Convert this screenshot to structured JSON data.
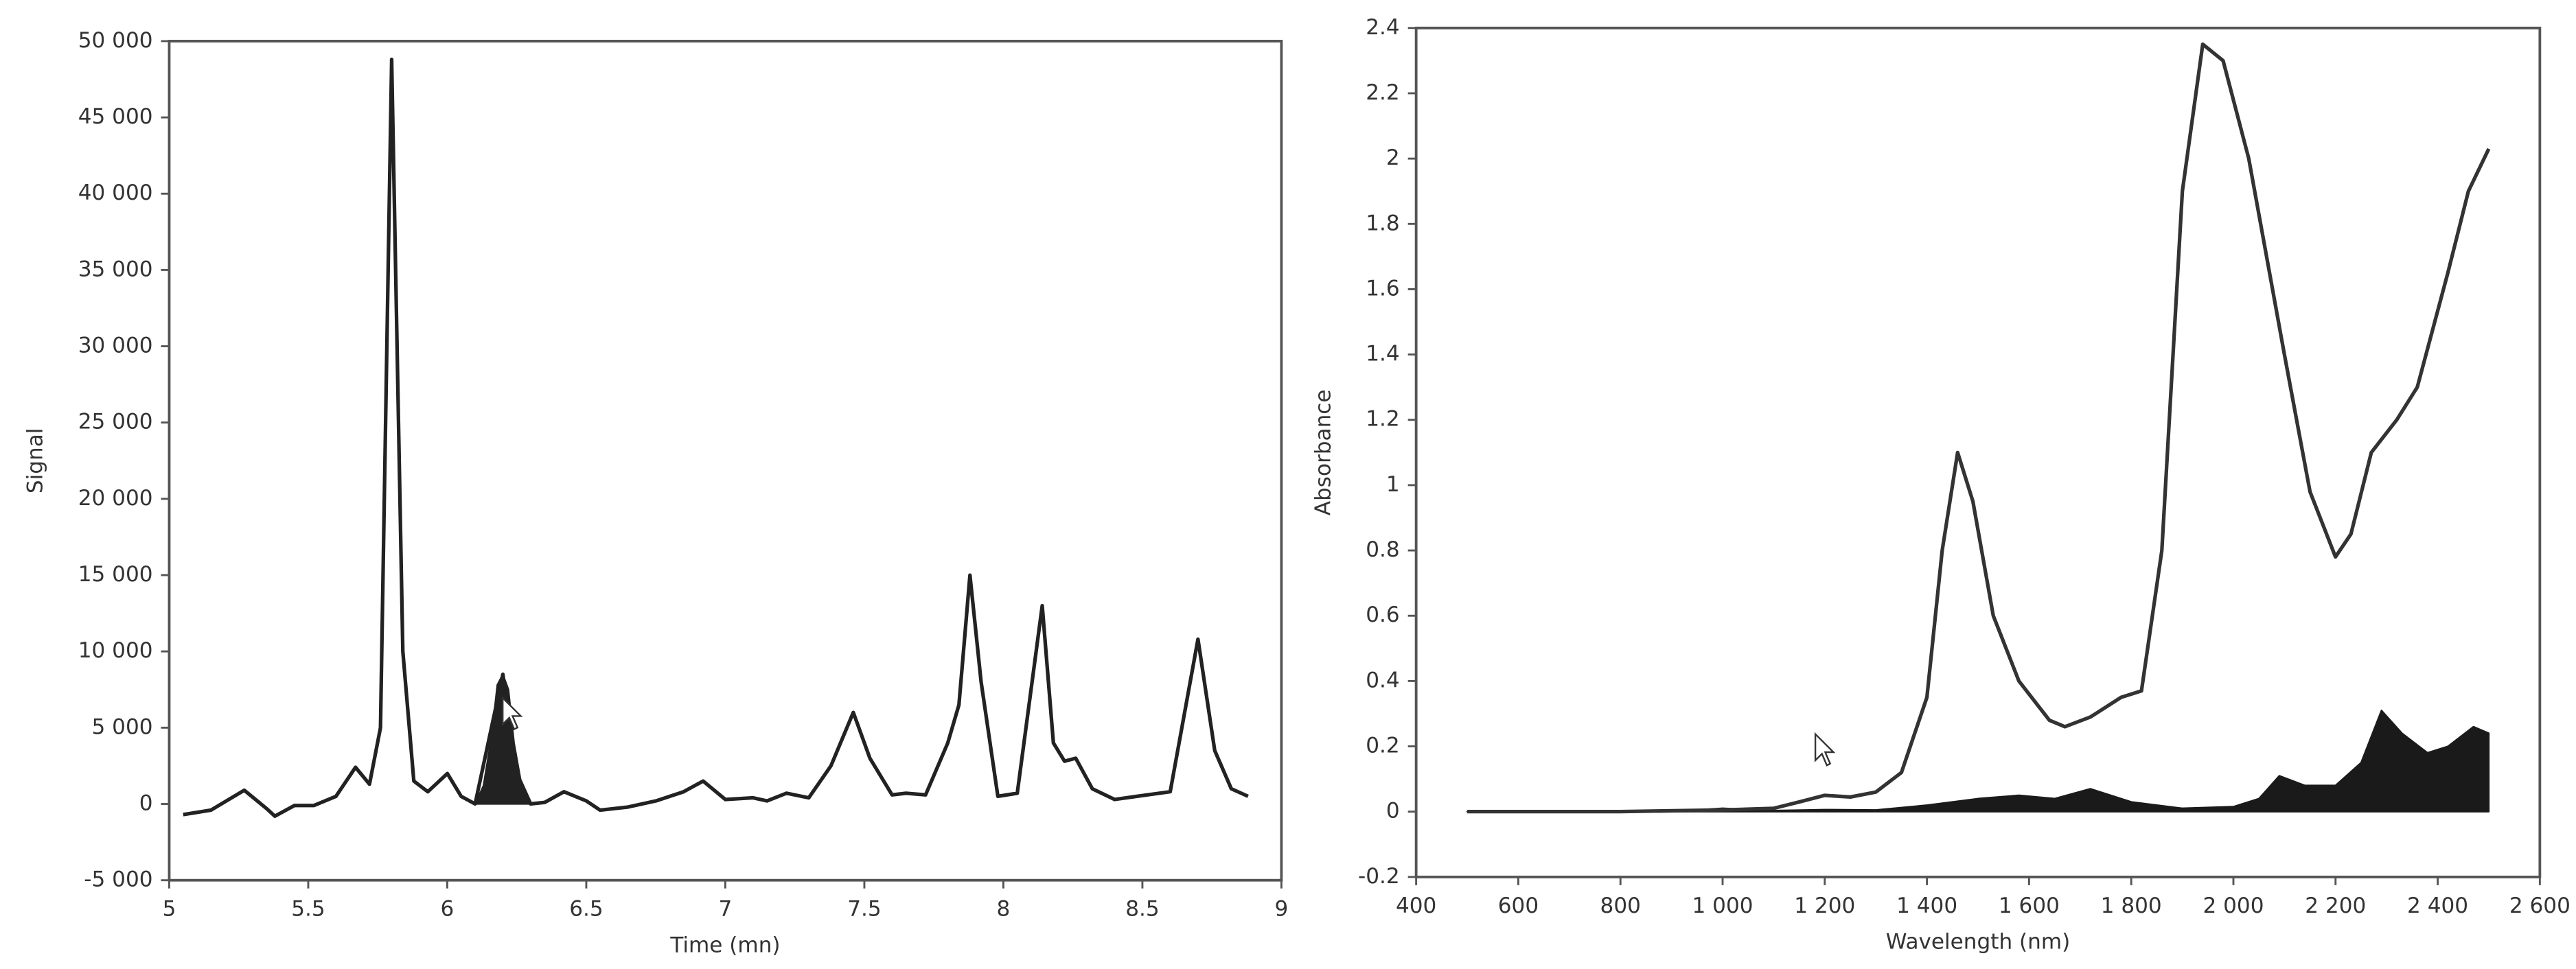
{
  "chart_data": [
    {
      "type": "line",
      "xlabel": "Time (mn)",
      "ylabel": "Signal",
      "xlim": [
        5,
        9
      ],
      "ylim": [
        -5000,
        50000
      ],
      "xticks": [
        5,
        5.5,
        6,
        6.5,
        7,
        7.5,
        8,
        8.5,
        9
      ],
      "yticks": [
        {
          "value": -5000,
          "label": "-5 000"
        },
        0,
        {
          "value": 5000,
          "label": "5 000"
        },
        {
          "value": 10000,
          "label": "10 000"
        },
        {
          "value": 15000,
          "label": "15 000"
        },
        {
          "value": 20000,
          "label": "20 000"
        },
        {
          "value": 25000,
          "label": "25 000"
        },
        {
          "value": 30000,
          "label": "30 000"
        },
        {
          "value": 35000,
          "label": "35 000"
        },
        {
          "value": 40000,
          "label": "40 000"
        },
        {
          "value": 45000,
          "label": "45 000"
        },
        {
          "value": 50000,
          "label": "50 000"
        }
      ],
      "series": [
        {
          "color": "#222222",
          "fill": true,
          "x": [
            6.1,
            6.13,
            6.16,
            6.18,
            6.2,
            6.22,
            6.24,
            6.27,
            6.3
          ],
          "values": [
            0,
            1200,
            4500,
            7800,
            8500,
            7500,
            4000,
            1000,
            0
          ]
        },
        {
          "color": "#222222",
          "fill": false,
          "x": [
            5.05,
            5.15,
            5.27,
            5.35,
            5.38,
            5.45,
            5.52,
            5.6,
            5.67,
            5.72,
            5.76,
            5.8,
            5.84,
            5.88,
            5.93,
            6.0,
            6.05,
            6.1,
            6.2,
            6.25,
            6.3,
            6.35,
            6.42,
            6.5,
            6.55,
            6.65,
            6.75,
            6.85,
            6.92,
            7.0,
            7.1,
            7.15,
            7.22,
            7.3,
            7.38,
            7.46,
            7.52,
            7.6,
            7.65,
            7.72,
            7.8,
            7.84,
            7.88,
            7.92,
            7.98,
            8.05,
            8.14,
            8.18,
            8.22,
            8.26,
            8.32,
            8.4,
            8.48,
            8.6,
            8.7,
            8.76,
            8.82,
            8.88
          ],
          "values": [
            -700,
            -400,
            900,
            -300,
            -800,
            -100,
            -100,
            500,
            2400,
            1300,
            5000,
            48800,
            10000,
            1500,
            800,
            2000,
            500,
            0,
            8500,
            2000,
            0,
            100,
            800,
            200,
            -400,
            -200,
            200,
            800,
            1500,
            300,
            400,
            200,
            700,
            400,
            2500,
            6000,
            3000,
            600,
            700,
            600,
            4000,
            6500,
            15000,
            8000,
            500,
            700,
            13000,
            4000,
            2800,
            3000,
            1000,
            300,
            500,
            800,
            10800,
            3500,
            1000,
            500
          ]
        }
      ]
    },
    {
      "type": "line",
      "xlabel": "Wavelength (nm)",
      "ylabel": "Absorbance",
      "xlim": [
        400,
        2600
      ],
      "ylim": [
        -0.2,
        2.4
      ],
      "xticks": [
        400,
        600,
        800,
        {
          "value": 1000,
          "label": "1 000"
        },
        {
          "value": 1200,
          "label": "1 200"
        },
        {
          "value": 1400,
          "label": "1 400"
        },
        {
          "value": 1600,
          "label": "1 600"
        },
        {
          "value": 1800,
          "label": "1 800"
        },
        {
          "value": 2000,
          "label": "2 000"
        },
        {
          "value": 2200,
          "label": "2 200"
        },
        {
          "value": 2400,
          "label": "2 400"
        },
        {
          "value": 2600,
          "label": "2 600"
        }
      ],
      "yticks": [
        -0.2,
        0,
        0.2,
        0.4,
        0.6,
        0.8,
        1,
        1.2,
        1.4,
        1.6,
        1.8,
        2,
        2.2,
        2.4
      ],
      "series": [
        {
          "color": "#1a1a1a",
          "fill": true,
          "x": [
            500,
            900,
            1000,
            1100,
            1200,
            1300,
            1400,
            1500,
            1580,
            1650,
            1720,
            1800,
            1900,
            2000,
            2050,
            2090,
            2140,
            2200,
            2250,
            2290,
            2330,
            2380,
            2420,
            2470,
            2500
          ],
          "values": [
            0,
            0,
            0.01,
            0.003,
            0.006,
            0.005,
            0.02,
            0.04,
            0.05,
            0.04,
            0.07,
            0.03,
            0.01,
            0.015,
            0.04,
            0.11,
            0.08,
            0.08,
            0.15,
            0.31,
            0.24,
            0.18,
            0.2,
            0.26,
            0.24
          ]
        },
        {
          "color": "#333333",
          "fill": false,
          "x": [
            500,
            800,
            1000,
            1100,
            1150,
            1200,
            1250,
            1300,
            1350,
            1400,
            1430,
            1460,
            1490,
            1530,
            1580,
            1640,
            1670,
            1720,
            1780,
            1820,
            1860,
            1900,
            1940,
            1980,
            2030,
            2100,
            2150,
            2200,
            2230,
            2270,
            2320,
            2360,
            2420,
            2460,
            2500
          ],
          "values": [
            0,
            0,
            0.005,
            0.01,
            0.03,
            0.05,
            0.045,
            0.06,
            0.12,
            0.35,
            0.8,
            1.1,
            0.95,
            0.6,
            0.4,
            0.28,
            0.26,
            0.29,
            0.35,
            0.37,
            0.8,
            1.9,
            2.35,
            2.3,
            2.0,
            1.4,
            0.98,
            0.78,
            0.85,
            1.1,
            1.2,
            1.3,
            1.65,
            1.9,
            2.03
          ]
        }
      ]
    }
  ]
}
